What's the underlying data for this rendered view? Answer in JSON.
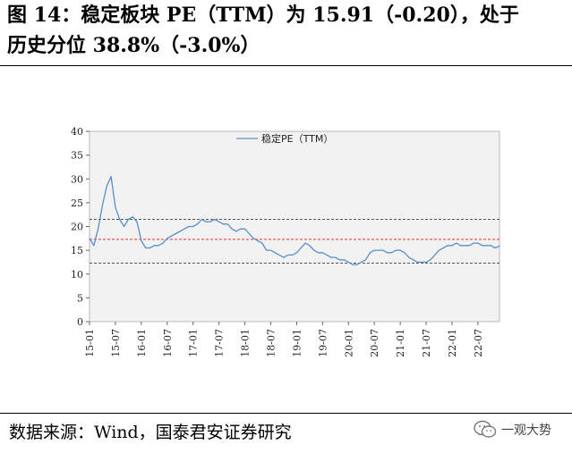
{
  "figure": {
    "title_line1": "图 14：稳定板块 PE（TTM）为 15.91（-0.20），处于",
    "title_line2": "历史分位 38.8%（-3.0%）",
    "source": "数据来源：Wind，国泰君安证券研究",
    "watermark": "一观大势"
  },
  "chart_data": {
    "type": "line",
    "title": "",
    "xlabel": "",
    "ylabel": "",
    "ylim": [
      0,
      40
    ],
    "yticks": [
      0,
      5,
      10,
      15,
      20,
      25,
      30,
      35,
      40
    ],
    "xlim": [
      "2015-01",
      "2022-12"
    ],
    "xticks": [
      "15-01",
      "15-07",
      "16-01",
      "16-07",
      "17-01",
      "17-07",
      "18-01",
      "18-07",
      "19-01",
      "19-07",
      "20-01",
      "20-07",
      "21-01",
      "21-07",
      "22-01",
      "22-07"
    ],
    "grid": false,
    "legend_position": "top-center",
    "series": [
      {
        "name": "稳定PE（TTM）",
        "color": "#5b8fc9",
        "x": [
          "2015-01",
          "2015-02",
          "2015-03",
          "2015-04",
          "2015-05",
          "2015-06",
          "2015-07",
          "2015-08",
          "2015-09",
          "2015-10",
          "2015-11",
          "2015-12",
          "2016-01",
          "2016-02",
          "2016-03",
          "2016-04",
          "2016-05",
          "2016-06",
          "2016-07",
          "2016-08",
          "2016-09",
          "2016-10",
          "2016-11",
          "2016-12",
          "2017-01",
          "2017-02",
          "2017-03",
          "2017-04",
          "2017-05",
          "2017-06",
          "2017-07",
          "2017-08",
          "2017-09",
          "2017-10",
          "2017-11",
          "2017-12",
          "2018-01",
          "2018-02",
          "2018-03",
          "2018-04",
          "2018-05",
          "2018-06",
          "2018-07",
          "2018-08",
          "2018-09",
          "2018-10",
          "2018-11",
          "2018-12",
          "2019-01",
          "2019-02",
          "2019-03",
          "2019-04",
          "2019-05",
          "2019-06",
          "2019-07",
          "2019-08",
          "2019-09",
          "2019-10",
          "2019-11",
          "2019-12",
          "2020-01",
          "2020-02",
          "2020-03",
          "2020-04",
          "2020-05",
          "2020-06",
          "2020-07",
          "2020-08",
          "2020-09",
          "2020-10",
          "2020-11",
          "2020-12",
          "2021-01",
          "2021-02",
          "2021-03",
          "2021-04",
          "2021-05",
          "2021-06",
          "2021-07",
          "2021-08",
          "2021-09",
          "2021-10",
          "2021-11",
          "2021-12",
          "2022-01",
          "2022-02",
          "2022-03",
          "2022-04",
          "2022-05",
          "2022-06",
          "2022-07",
          "2022-08",
          "2022-09",
          "2022-10",
          "2022-11",
          "2022-12"
        ],
        "values": [
          17.5,
          16.0,
          19.5,
          24.5,
          28.5,
          30.5,
          24.0,
          21.5,
          20.0,
          21.5,
          22.0,
          21.0,
          17.0,
          15.5,
          15.5,
          16.0,
          16.0,
          16.5,
          17.5,
          18.0,
          18.5,
          19.0,
          19.5,
          20.0,
          20.0,
          20.5,
          21.5,
          21.0,
          21.0,
          21.5,
          21.0,
          20.5,
          20.5,
          19.5,
          19.0,
          19.5,
          19.5,
          18.5,
          17.5,
          17.0,
          16.5,
          15.0,
          15.0,
          14.5,
          14.0,
          13.5,
          14.0,
          14.0,
          14.5,
          15.5,
          16.5,
          16.0,
          15.0,
          14.5,
          14.5,
          14.0,
          13.5,
          13.5,
          13.0,
          13.0,
          12.5,
          12.0,
          12.0,
          12.5,
          13.0,
          14.5,
          15.0,
          15.0,
          15.0,
          14.5,
          14.5,
          15.0,
          15.0,
          14.5,
          13.5,
          13.0,
          12.5,
          12.5,
          12.5,
          13.0,
          14.0,
          15.0,
          15.5,
          16.0,
          16.0,
          16.5,
          16.0,
          16.0,
          16.0,
          16.5,
          16.5,
          16.0,
          16.0,
          16.0,
          15.5,
          15.91
        ]
      }
    ],
    "reference_lines": [
      {
        "value": 21.5,
        "color": "#555555",
        "style": "dashed"
      },
      {
        "value": 17.3,
        "color": "#e8332a",
        "style": "dashed"
      },
      {
        "value": 12.3,
        "color": "#555555",
        "style": "dashed"
      }
    ]
  }
}
